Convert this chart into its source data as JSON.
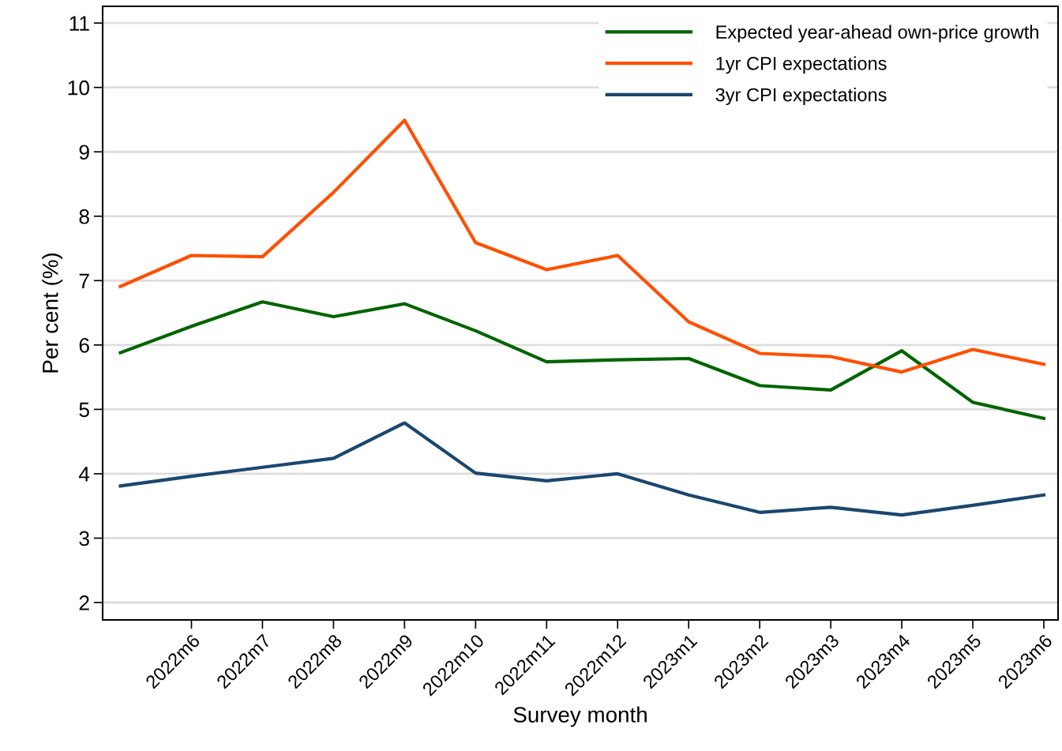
{
  "chart_data": {
    "type": "line",
    "xlabel": "Survey month",
    "ylabel": "Per cent (%)",
    "categories": [
      null,
      "2022m6",
      "2022m7",
      "2022m8",
      "2022m9",
      "2022m10",
      "2022m11",
      "2022m12",
      "2023m1",
      "2023m2",
      "2023m3",
      "2023m4",
      "2023m5",
      "2023m6"
    ],
    "ylim": [
      1.73,
      11.26
    ],
    "yticks": [
      2,
      3,
      4,
      5,
      6,
      7,
      8,
      9,
      10,
      11
    ],
    "grid": "y",
    "legend": "top right",
    "marker": "none",
    "line_style": "solid",
    "series": [
      {
        "name": "Expected year-ahead own-price growth",
        "color": "#006400",
        "values": [
          5.88,
          6.29,
          6.67,
          6.44,
          6.64,
          6.22,
          5.74,
          5.77,
          5.79,
          5.37,
          5.3,
          5.91,
          5.11,
          4.86
        ]
      },
      {
        "name": "1yr CPI expectations",
        "color": "#ff4f00",
        "values": [
          6.91,
          7.39,
          7.37,
          8.37,
          9.49,
          7.59,
          7.17,
          7.39,
          6.36,
          5.87,
          5.82,
          5.58,
          5.93,
          5.7
        ]
      },
      {
        "name": "3yr CPI expectations",
        "color": "#1a476f",
        "values": [
          3.81,
          3.96,
          4.1,
          4.24,
          4.79,
          4.01,
          3.89,
          4.0,
          3.67,
          3.4,
          3.48,
          3.36,
          3.51,
          3.67
        ]
      }
    ]
  }
}
